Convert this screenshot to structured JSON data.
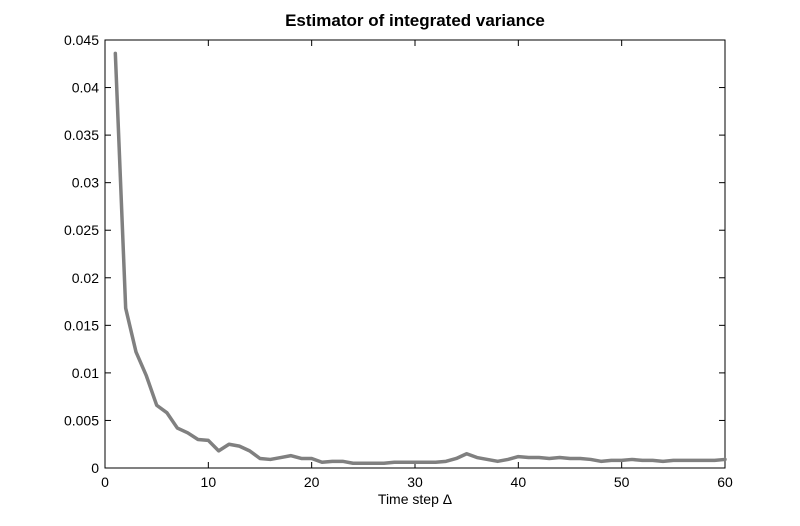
{
  "chart_data": {
    "type": "line",
    "title": "Estimator of integrated variance",
    "xlabel": "Time step Δ",
    "ylabel": "",
    "xlim": [
      0,
      60
    ],
    "ylim": [
      0,
      0.045
    ],
    "grid": false,
    "legend": "none",
    "x_ticks": [
      0,
      10,
      20,
      30,
      40,
      50,
      60
    ],
    "x_tick_labels": [
      "0",
      "10",
      "20",
      "30",
      "40",
      "50",
      "60"
    ],
    "y_ticks": [
      0,
      0.005,
      0.01,
      0.015,
      0.02,
      0.025,
      0.03,
      0.035,
      0.04,
      0.045
    ],
    "y_tick_labels": [
      "0",
      "0.005",
      "0.01",
      "0.015",
      "0.02",
      "0.025",
      "0.03",
      "0.035",
      "0.04",
      "0.045"
    ],
    "line_color": "#808080",
    "series": [
      {
        "x": [
          1,
          2,
          3,
          4,
          5,
          6,
          7,
          8,
          9,
          10,
          11,
          12,
          13,
          14,
          15,
          16,
          17,
          18,
          19,
          20,
          21,
          22,
          23,
          24,
          25,
          26,
          27,
          28,
          29,
          30,
          31,
          32,
          33,
          34,
          35,
          36,
          37,
          38,
          39,
          40,
          41,
          42,
          43,
          44,
          45,
          46,
          47,
          48,
          49,
          50,
          51,
          52,
          53,
          54,
          55,
          56,
          57,
          58,
          59,
          60
        ],
        "values": [
          0.0436,
          0.0168,
          0.0122,
          0.0097,
          0.0066,
          0.0058,
          0.0042,
          0.0037,
          0.003,
          0.0029,
          0.0018,
          0.0025,
          0.0023,
          0.0018,
          0.001,
          0.0009,
          0.0011,
          0.0013,
          0.001,
          0.001,
          0.0006,
          0.0007,
          0.0007,
          0.0005,
          0.0005,
          0.0005,
          0.0005,
          0.0006,
          0.0006,
          0.0006,
          0.0006,
          0.0006,
          0.0007,
          0.001,
          0.0015,
          0.0011,
          0.0009,
          0.0007,
          0.0009,
          0.0012,
          0.0011,
          0.0011,
          0.001,
          0.0011,
          0.001,
          0.001,
          0.0009,
          0.0007,
          0.0008,
          0.0008,
          0.0009,
          0.0008,
          0.0008,
          0.0007,
          0.0008,
          0.0008,
          0.0008,
          0.0008,
          0.0008,
          0.0009
        ]
      }
    ]
  }
}
